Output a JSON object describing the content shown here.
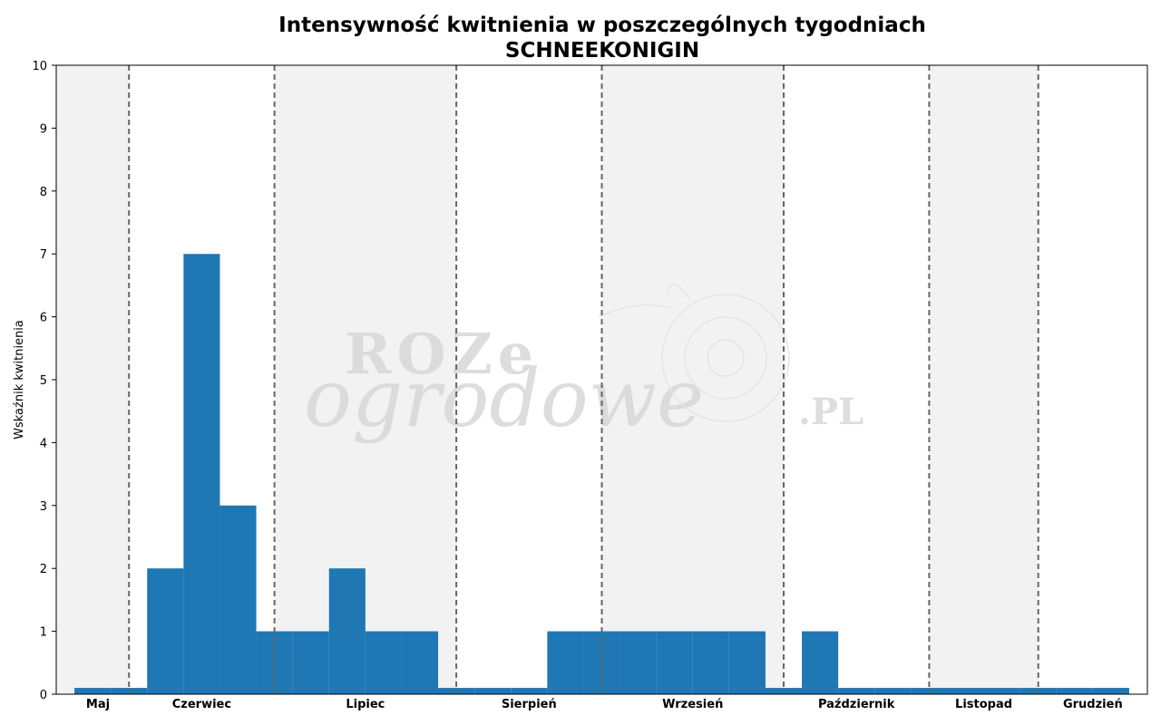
{
  "chart_data": {
    "type": "bar",
    "title": "Intensywność kwitnienia w poszczególnych tygodniach",
    "subtitle": "SCHNEEKONIGIN",
    "xlabel": "",
    "ylabel": "Wskaźnik kwitnienia",
    "ylim": [
      0,
      10
    ],
    "yticks": [
      0,
      1,
      2,
      3,
      4,
      5,
      6,
      7,
      8,
      9,
      10
    ],
    "week_range": [
      18,
      48
    ],
    "values": [
      0.1,
      0.1,
      2,
      7,
      3,
      1,
      1,
      2,
      1,
      1,
      0.1,
      0.1,
      0.1,
      1,
      1,
      1,
      1,
      1,
      1,
      0.1,
      1,
      0.1,
      0.1,
      0.1,
      0.1,
      0.1,
      0.1,
      0.1,
      0.1
    ],
    "value_start_week": 19,
    "months": [
      {
        "name": "Maj",
        "start_week": 17.75,
        "end_week": 20
      },
      {
        "name": "Czerwiec",
        "start_week": 20,
        "end_week": 24
      },
      {
        "name": "Lipiec",
        "start_week": 24,
        "end_week": 29
      },
      {
        "name": "Sierpień",
        "start_week": 29,
        "end_week": 33
      },
      {
        "name": "Wrzesień",
        "start_week": 33,
        "end_week": 38
      },
      {
        "name": "Październik",
        "start_week": 38,
        "end_week": 42
      },
      {
        "name": "Listopad",
        "start_week": 42,
        "end_week": 45
      },
      {
        "name": "Grudzień",
        "start_week": 45,
        "end_week": 48
      }
    ],
    "grid": false,
    "colors": {
      "bar": "#1f77b4",
      "band": "#f2f2f2",
      "divider": "#666666"
    }
  },
  "watermark": {
    "line1": "ROZe",
    "line2": "ogrodowe",
    "suffix": ".PL"
  }
}
